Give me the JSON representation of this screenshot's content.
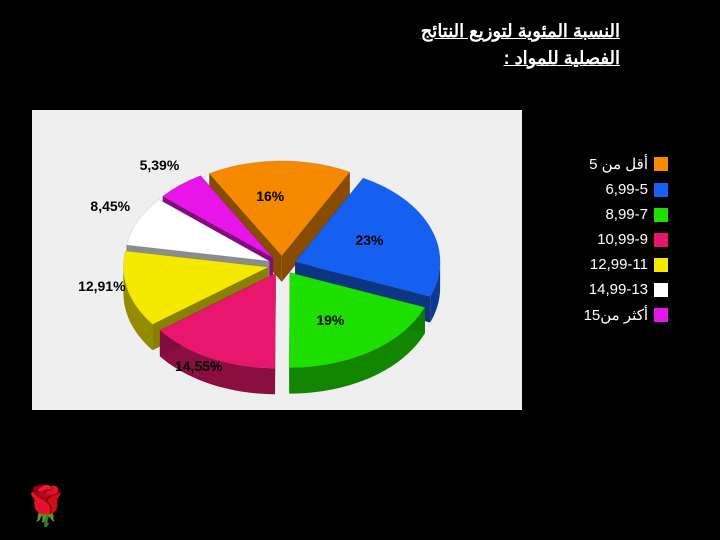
{
  "title_line1": "النسبة المئوية لتوزيع النتائج",
  "title_line2": "الفصلية للمواد :",
  "chart": {
    "type": "pie3d",
    "background_color": "#efefef",
    "exploded": true,
    "label_fontsize": 14,
    "label_fontweight": "bold",
    "label_color": "#000000",
    "slices": [
      {
        "label": "16%",
        "value": 16.0,
        "color": "#f58a00",
        "category": "أقل من 5"
      },
      {
        "label": "23%",
        "value": 23.0,
        "color": "#1560f0",
        "category": "6,99-5"
      },
      {
        "label": "19%",
        "value": 19.0,
        "color": "#1ee000",
        "category": "8,99-7"
      },
      {
        "label": "14,55%",
        "value": 14.55,
        "color": "#e8176d",
        "category": "10,99-9"
      },
      {
        "label": "12,91%",
        "value": 12.91,
        "color": "#f5e900",
        "category": "12,99-11"
      },
      {
        "label": "8,45%",
        "value": 8.45,
        "color": "#ffffff",
        "category": "14,99-13"
      },
      {
        "label": "5,39%",
        "value": 5.39,
        "color": "#e815e8",
        "category": "أكثر من15"
      }
    ]
  },
  "legend": {
    "text_color": "#ffffff",
    "fontsize": 15,
    "items": [
      {
        "color": "#f58a00",
        "label": "أقل من 5"
      },
      {
        "color": "#1560f0",
        "label": "6,99-5"
      },
      {
        "color": "#1ee000",
        "label": "8,99-7"
      },
      {
        "color": "#e8176d",
        "label": "10,99-9"
      },
      {
        "color": "#f5e900",
        "label": "12,99-11"
      },
      {
        "color": "#ffffff",
        "label": "14,99-13"
      },
      {
        "color": "#e815e8",
        "label": "أكثر من15"
      }
    ]
  },
  "decoration": {
    "flower_emoji": "🌹"
  }
}
